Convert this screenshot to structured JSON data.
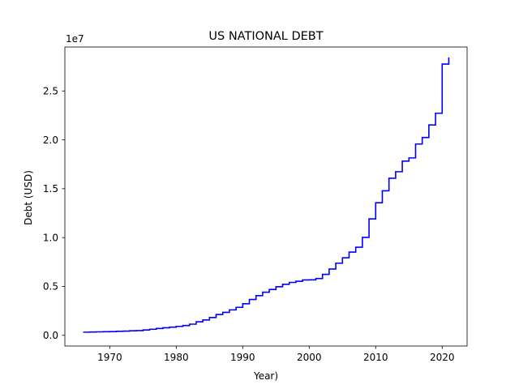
{
  "chart_data": {
    "type": "line",
    "title": "US NATIONAL DEBT",
    "xlabel": "Year)",
    "ylabel": "Debt (USD)",
    "y_offset_label": "1e7",
    "xlim": [
      1963.25,
      2023.75
    ],
    "ylim": [
      -1100000,
      29500000
    ],
    "x_ticks": [
      1970,
      1980,
      1990,
      2000,
      2010,
      2020
    ],
    "x_tick_labels": [
      "1970",
      "1980",
      "1990",
      "2000",
      "2010",
      "2020"
    ],
    "y_ticks": [
      0,
      5000000,
      10000000,
      15000000,
      20000000,
      25000000
    ],
    "y_tick_labels": [
      "0.0",
      "0.5",
      "1.0",
      "1.5",
      "2.0",
      "2.5"
    ],
    "grid": false,
    "line_color": "#0000ff",
    "step_style": "steps-post",
    "series": [
      {
        "x": [
          1966,
          1967,
          1968,
          1969,
          1970,
          1971,
          1972,
          1973,
          1974,
          1975,
          1976,
          1977,
          1978,
          1979,
          1980,
          1981,
          1982,
          1983,
          1984,
          1985,
          1986,
          1987,
          1988,
          1989,
          1990,
          1991,
          1992,
          1993,
          1994,
          1995,
          1996,
          1997,
          1998,
          1999,
          2000,
          2001,
          2002,
          2003,
          2004,
          2005,
          2006,
          2007,
          2008,
          2009,
          2010,
          2011,
          2012,
          2013,
          2014,
          2015,
          2016,
          2017,
          2018,
          2019,
          2020,
          2021
        ],
        "y": [
          320000,
          340000,
          350000,
          370000,
          380000,
          410000,
          430000,
          460000,
          480000,
          540000,
          620000,
          700000,
          770000,
          830000,
          910000,
          1000000,
          1140000,
          1380000,
          1570000,
          1820000,
          2130000,
          2350000,
          2600000,
          2860000,
          3230000,
          3660000,
          4060000,
          4410000,
          4690000,
          4970000,
          5220000,
          5410000,
          5530000,
          5660000,
          5670000,
          5810000,
          6230000,
          6780000,
          7380000,
          7930000,
          8510000,
          9010000,
          10020000,
          11910000,
          13560000,
          14790000,
          16070000,
          16740000,
          17820000,
          18150000,
          19570000,
          20240000,
          21520000,
          22720000,
          27750000,
          28430000
        ]
      }
    ]
  }
}
